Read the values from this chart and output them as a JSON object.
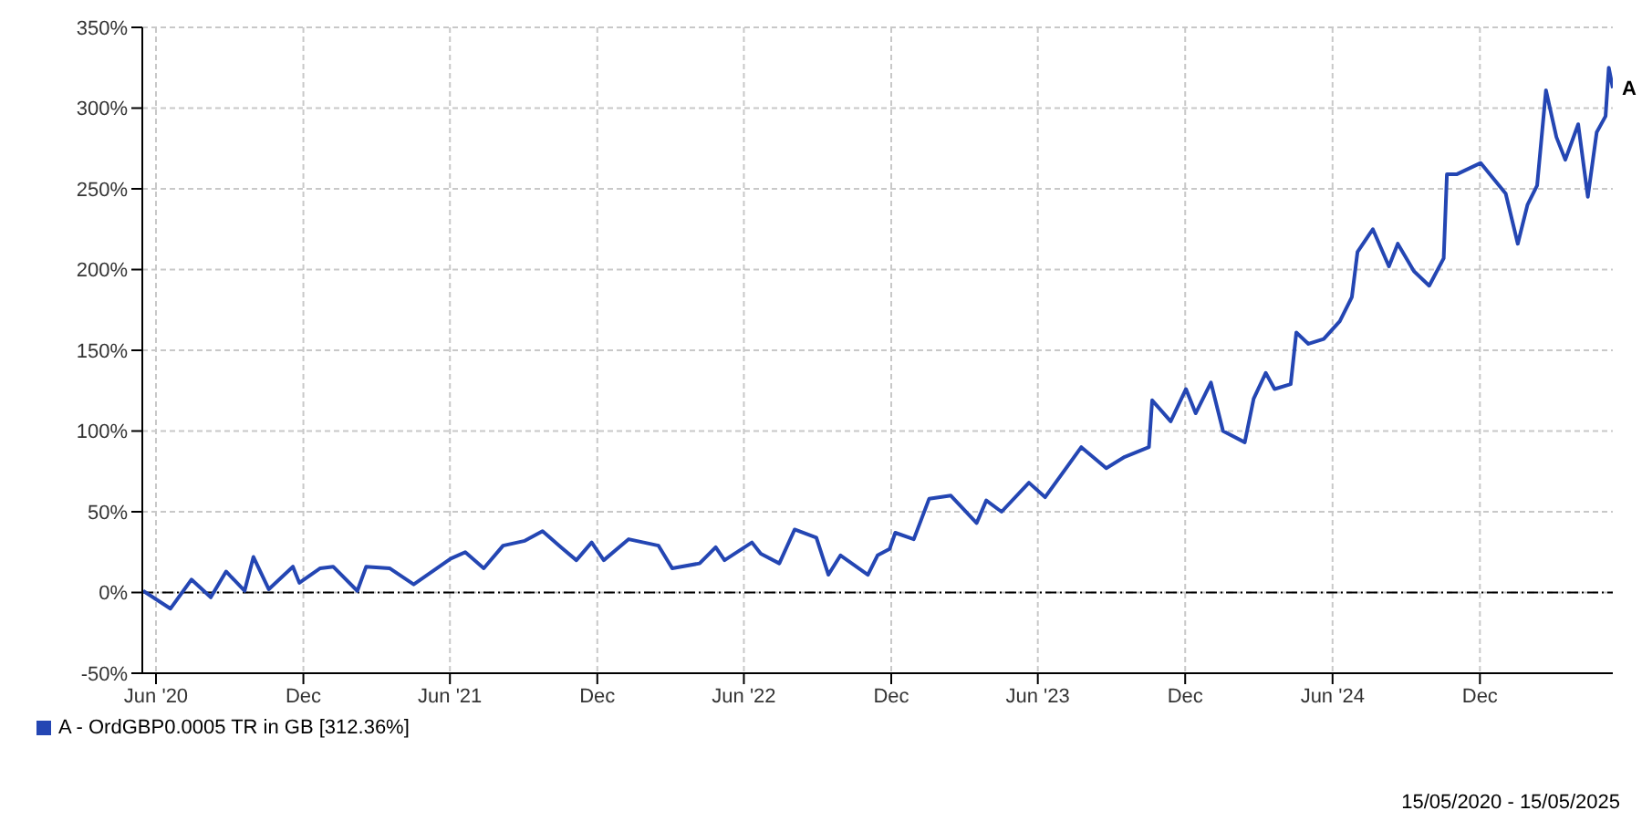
{
  "chart_data": {
    "type": "line",
    "x": [
      "2020-05-16",
      "2020-06-19",
      "2020-07-15",
      "2020-08-08",
      "2020-08-27",
      "2020-09-19",
      "2020-09-30",
      "2020-10-19",
      "2020-11-18",
      "2020-11-26",
      "2020-12-22",
      "2021-01-07",
      "2021-02-06",
      "2021-02-17",
      "2021-03-18",
      "2021-04-17",
      "2021-06-02",
      "2021-06-20",
      "2021-07-13",
      "2021-08-06",
      "2021-09-02",
      "2021-09-24",
      "2021-10-17",
      "2021-11-05",
      "2021-11-24",
      "2021-12-09",
      "2022-01-09",
      "2022-02-15",
      "2022-03-04",
      "2022-04-07",
      "2022-04-27",
      "2022-05-08",
      "2022-06-11",
      "2022-06-22",
      "2022-07-15",
      "2022-08-03",
      "2022-08-30",
      "2022-09-14",
      "2022-09-29",
      "2022-11-02",
      "2022-11-14",
      "2022-11-29",
      "2022-12-06",
      "2022-12-29",
      "2023-01-17",
      "2023-02-13",
      "2023-03-17",
      "2023-03-29",
      "2023-04-17",
      "2023-05-21",
      "2023-06-10",
      "2023-07-25",
      "2023-08-25",
      "2023-09-17",
      "2023-10-17",
      "2023-10-21",
      "2023-11-13",
      "2023-12-02",
      "2023-12-14",
      "2024-01-02",
      "2024-01-17",
      "2024-02-13",
      "2024-02-24",
      "2024-03-10",
      "2024-03-21",
      "2024-04-10",
      "2024-04-17",
      "2024-05-02",
      "2024-05-21",
      "2024-06-10",
      "2024-06-25",
      "2024-07-02",
      "2024-07-21",
      "2024-08-10",
      "2024-08-21",
      "2024-09-10",
      "2024-09-29",
      "2024-10-17",
      "2024-10-21",
      "2024-11-02",
      "2024-12-02",
      "2025-01-02",
      "2025-01-17",
      "2025-01-29",
      "2025-02-10",
      "2025-02-21",
      "2025-03-06",
      "2025-03-17",
      "2025-04-02",
      "2025-04-14",
      "2025-04-25",
      "2025-05-06",
      "2025-05-10",
      "2025-05-15"
    ],
    "series": [
      {
        "name": "A - OrdGBP0.0005 TR in GB [312.36%]",
        "color": "#2446b3",
        "values": [
          1,
          -10,
          8,
          -3,
          13,
          1,
          22,
          2,
          16,
          6,
          15,
          16,
          1,
          16,
          15,
          5,
          21,
          25,
          15,
          29,
          32,
          38,
          28,
          20,
          31,
          20,
          33,
          29,
          15,
          18,
          28,
          20,
          31,
          24,
          18,
          39,
          34,
          11,
          23,
          11,
          23,
          27,
          37,
          33,
          58,
          60,
          43,
          57,
          50,
          68,
          59,
          90,
          77,
          84,
          90,
          119,
          106,
          126,
          111,
          130,
          100,
          93,
          120,
          136,
          126,
          129,
          161,
          154,
          157,
          168,
          183,
          211,
          225,
          202,
          216,
          199,
          190,
          207,
          259,
          259,
          266,
          247,
          216,
          240,
          252,
          311,
          282,
          268,
          290,
          245,
          285,
          295,
          325,
          312.36
        ]
      }
    ],
    "xlim": [
      "2020-05-15",
      "2025-05-15"
    ],
    "xticks": [
      {
        "value": "2020-06-01",
        "label": "Jun '20"
      },
      {
        "value": "2020-12-01",
        "label": "Dec"
      },
      {
        "value": "2021-06-01",
        "label": "Jun '21"
      },
      {
        "value": "2021-12-01",
        "label": "Dec"
      },
      {
        "value": "2022-06-01",
        "label": "Jun '22"
      },
      {
        "value": "2022-12-01",
        "label": "Dec"
      },
      {
        "value": "2023-06-01",
        "label": "Jun '23"
      },
      {
        "value": "2023-12-01",
        "label": "Dec"
      },
      {
        "value": "2024-06-01",
        "label": "Jun '24"
      },
      {
        "value": "2024-12-01",
        "label": "Dec"
      }
    ],
    "ylim": [
      -50,
      350
    ],
    "yticks": [
      {
        "value": -50,
        "label": "-50%"
      },
      {
        "value": 0,
        "label": "0%"
      },
      {
        "value": 50,
        "label": "50%"
      },
      {
        "value": 100,
        "label": "100%"
      },
      {
        "value": 150,
        "label": "150%"
      },
      {
        "value": 200,
        "label": "200%"
      },
      {
        "value": 250,
        "label": "250%"
      },
      {
        "value": 300,
        "label": "300%"
      },
      {
        "value": 350,
        "label": "350%"
      }
    ],
    "grid": true,
    "legend": "bottom left",
    "marker": "none",
    "line_style": "solid",
    "ref_lines": [
      {
        "axis": "y",
        "value": 0,
        "color": "#000000",
        "line_style": "dashed"
      }
    ],
    "annotations": [
      {
        "text": "A",
        "x": "2025-05-15",
        "y": 312.36
      },
      "15/05/2020 - 15/05/2025"
    ]
  }
}
